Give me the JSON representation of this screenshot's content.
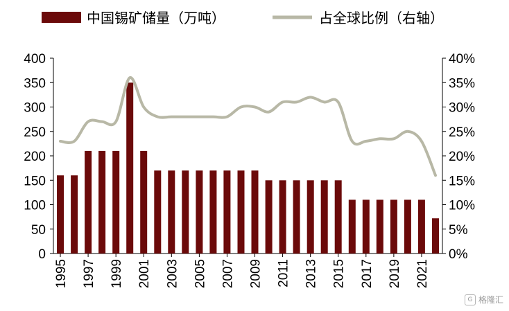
{
  "chart_data": {
    "type": "bar",
    "categories": [
      "1995",
      "1996",
      "1997",
      "1998",
      "1999",
      "2000",
      "2001",
      "2002",
      "2003",
      "2004",
      "2005",
      "2006",
      "2007",
      "2008",
      "2009",
      "2010",
      "2011",
      "2012",
      "2013",
      "2014",
      "2015",
      "2016",
      "2017",
      "2018",
      "2019",
      "2020",
      "2021",
      "2022"
    ],
    "x_tick_labels": [
      "1995",
      "1997",
      "1999",
      "2001",
      "2003",
      "2005",
      "2007",
      "2009",
      "2011",
      "2013",
      "2015",
      "2017",
      "2019",
      "2021"
    ],
    "series": [
      {
        "name": "中国锡矿储量（万吨）",
        "type": "bar",
        "axis": "left",
        "color": "#6b0a0a",
        "values": [
          160,
          160,
          210,
          210,
          210,
          350,
          210,
          170,
          170,
          170,
          170,
          170,
          170,
          170,
          170,
          150,
          150,
          150,
          150,
          150,
          150,
          110,
          110,
          110,
          110,
          110,
          110,
          72
        ]
      },
      {
        "name": "占全球比例（右轴）",
        "type": "line",
        "axis": "right",
        "color": "#b8b8a6",
        "values": [
          23,
          23,
          27,
          27,
          27,
          36,
          30,
          28,
          28,
          28,
          28,
          28,
          28,
          30,
          30,
          29,
          31,
          31,
          32,
          31,
          31,
          23,
          23,
          23.5,
          23.5,
          25,
          23,
          16
        ]
      }
    ],
    "ylim_left": [
      0,
      400
    ],
    "yticks_left": [
      "0",
      "50",
      "100",
      "150",
      "200",
      "250",
      "300",
      "350",
      "400"
    ],
    "ylim_right": [
      0,
      40
    ],
    "yticks_right": [
      "0%",
      "5%",
      "10%",
      "15%",
      "20%",
      "25%",
      "30%",
      "35%",
      "40%"
    ],
    "legend_position": "top",
    "grid": false
  },
  "watermark": {
    "text": "格隆汇",
    "icon": "G"
  }
}
